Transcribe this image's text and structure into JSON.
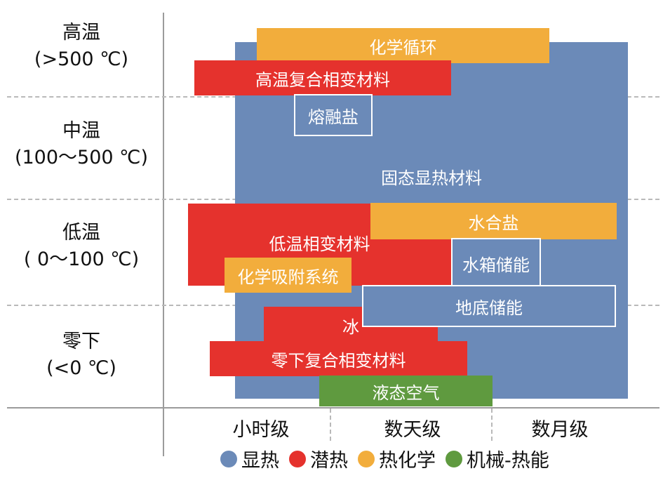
{
  "rows": [
    {
      "line1": "高温",
      "line2": "(>500 ℃)"
    },
    {
      "line1": "中温",
      "line2": "(100～500 ℃)"
    },
    {
      "line1": "低温",
      "line2": "( 0～100 ℃)"
    },
    {
      "line1": "零下",
      "line2": "(<0 ℃)"
    }
  ],
  "x_ticks": [
    "小时级",
    "数天级",
    "数月级"
  ],
  "boxes": {
    "solid_sensible": "固态显热材料",
    "chemical_cycle": "化学循环",
    "high_temp_composite_pcm": "高温复合相变材料",
    "molten_salt": "熔融盐",
    "low_temp_pcm": "低温相变材料",
    "hydrated_salt": "水合盐",
    "water_tank": "水箱储能",
    "chemical_adsorption": "化学吸附系统",
    "ground_storage": "地底储能",
    "ice": "冰",
    "subzero_composite_pcm": "零下复合相变材料",
    "liquid_air": "液态空气"
  },
  "legend": [
    {
      "label": "显热",
      "color": "#6b8ab8"
    },
    {
      "label": "潜热",
      "color": "#e5322d"
    },
    {
      "label": "热化学",
      "color": "#f2ad3c"
    },
    {
      "label": "机械-热能",
      "color": "#5f9a3f"
    }
  ]
}
